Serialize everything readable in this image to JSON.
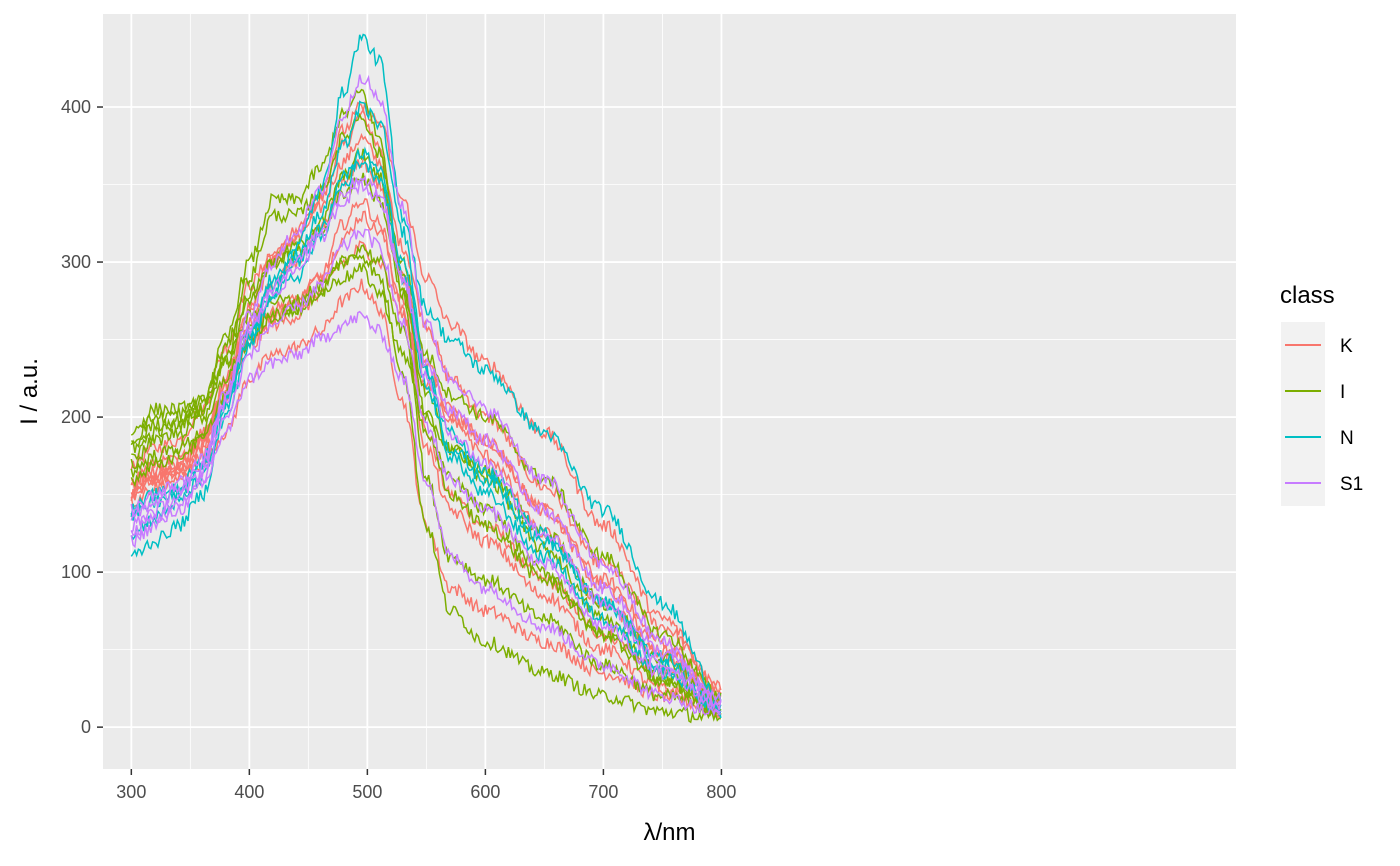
{
  "chart_data": {
    "type": "line",
    "title": "",
    "xlabel": "λ/nm",
    "ylabel": "I / a.u.",
    "xlim": [
      276,
      1236
    ],
    "ylim": [
      -27,
      460
    ],
    "x_ticks": [
      300,
      400,
      500,
      600,
      700,
      800
    ],
    "y_ticks": [
      0,
      100,
      200,
      300,
      400
    ],
    "x_tick_labels": [
      "300",
      "400",
      "500",
      "600",
      "700",
      "800"
    ],
    "y_tick_labels": [
      "0",
      "100",
      "200",
      "300",
      "400"
    ],
    "grid": true,
    "legend": {
      "title": "class",
      "position": "right",
      "entries": [
        {
          "label": "K",
          "color": "#F8766D"
        },
        {
          "label": "I",
          "color": "#7CAE00"
        },
        {
          "label": "N",
          "color": "#00BFC4"
        },
        {
          "label": "S1",
          "color": "#C77CFF"
        }
      ]
    },
    "x": [
      300,
      320,
      340,
      360,
      380,
      400,
      420,
      440,
      460,
      480,
      495,
      510,
      530,
      550,
      570,
      600,
      650,
      700,
      750,
      800
    ],
    "series": [
      {
        "class": "K",
        "values": [
          150,
          160,
          165,
          180,
          225,
          270,
          300,
          315,
          340,
          375,
          395,
          375,
          290,
          190,
          150,
          130,
          95,
          60,
          35,
          20
        ]
      },
      {
        "class": "K",
        "values": [
          170,
          180,
          185,
          205,
          245,
          285,
          305,
          315,
          335,
          365,
          380,
          365,
          310,
          260,
          225,
          200,
          155,
          105,
          65,
          25
        ]
      },
      {
        "class": "K",
        "values": [
          160,
          170,
          172,
          190,
          220,
          250,
          265,
          275,
          290,
          315,
          330,
          320,
          275,
          230,
          205,
          185,
          140,
          95,
          55,
          20
        ]
      },
      {
        "class": "K",
        "values": [
          150,
          160,
          162,
          170,
          190,
          225,
          240,
          245,
          255,
          275,
          285,
          270,
          210,
          130,
          90,
          75,
          55,
          35,
          20,
          10
        ]
      },
      {
        "class": "K",
        "values": [
          155,
          165,
          168,
          185,
          215,
          245,
          260,
          265,
          280,
          300,
          310,
          300,
          265,
          220,
          200,
          185,
          140,
          90,
          50,
          20
        ]
      },
      {
        "class": "K",
        "values": [
          150,
          160,
          165,
          180,
          225,
          270,
          305,
          320,
          345,
          385,
          400,
          390,
          340,
          290,
          260,
          235,
          190,
          130,
          70,
          25
        ]
      },
      {
        "class": "K",
        "values": [
          145,
          155,
          160,
          175,
          210,
          250,
          270,
          275,
          290,
          325,
          340,
          325,
          270,
          180,
          140,
          120,
          85,
          50,
          25,
          10
        ]
      },
      {
        "class": "K",
        "values": [
          155,
          165,
          170,
          185,
          220,
          260,
          285,
          300,
          320,
          350,
          365,
          350,
          295,
          235,
          200,
          175,
          125,
          80,
          45,
          15
        ]
      },
      {
        "class": "I",
        "values": [
          190,
          205,
          205,
          210,
          250,
          300,
          340,
          340,
          360,
          395,
          410,
          380,
          280,
          160,
          110,
          95,
          70,
          40,
          20,
          10
        ]
      },
      {
        "class": "I",
        "values": [
          175,
          190,
          195,
          205,
          240,
          280,
          300,
          310,
          325,
          355,
          370,
          355,
          300,
          240,
          215,
          200,
          160,
          110,
          60,
          20
        ]
      },
      {
        "class": "I",
        "values": [
          165,
          175,
          180,
          190,
          225,
          255,
          265,
          270,
          280,
          300,
          310,
          300,
          255,
          190,
          150,
          130,
          95,
          60,
          30,
          10
        ]
      },
      {
        "class": "I",
        "values": [
          180,
          195,
          198,
          205,
          235,
          265,
          275,
          275,
          285,
          300,
          305,
          290,
          230,
          130,
          75,
          55,
          35,
          20,
          10,
          5
        ]
      },
      {
        "class": "I",
        "values": [
          160,
          170,
          175,
          185,
          215,
          250,
          265,
          270,
          280,
          290,
          295,
          280,
          240,
          200,
          180,
          165,
          125,
          80,
          45,
          15
        ]
      },
      {
        "class": "I",
        "values": [
          170,
          185,
          190,
          200,
          235,
          275,
          300,
          305,
          320,
          345,
          355,
          340,
          280,
          215,
          180,
          160,
          115,
          70,
          35,
          12
        ]
      },
      {
        "class": "I",
        "values": [
          185,
          200,
          202,
          210,
          245,
          290,
          330,
          330,
          345,
          380,
          395,
          370,
          290,
          200,
          160,
          140,
          100,
          60,
          30,
          10
        ]
      },
      {
        "class": "N",
        "values": [
          110,
          120,
          130,
          150,
          200,
          245,
          280,
          310,
          345,
          410,
          445,
          430,
          330,
          270,
          250,
          230,
          190,
          140,
          80,
          20
        ]
      },
      {
        "class": "N",
        "values": [
          135,
          145,
          150,
          170,
          210,
          255,
          285,
          300,
          320,
          350,
          365,
          355,
          290,
          220,
          180,
          160,
          120,
          80,
          45,
          15
        ]
      },
      {
        "class": "N",
        "values": [
          125,
          135,
          145,
          160,
          205,
          250,
          280,
          290,
          315,
          355,
          370,
          360,
          300,
          230,
          190,
          165,
          125,
          80,
          40,
          12
        ]
      },
      {
        "class": "N",
        "values": [
          140,
          150,
          155,
          170,
          210,
          255,
          290,
          305,
          330,
          375,
          400,
          390,
          320,
          230,
          175,
          150,
          110,
          70,
          35,
          10
        ]
      },
      {
        "class": "S1",
        "values": [
          120,
          130,
          140,
          155,
          190,
          225,
          235,
          240,
          250,
          260,
          265,
          255,
          225,
          160,
          110,
          90,
          65,
          40,
          20,
          8
        ]
      },
      {
        "class": "S1",
        "values": [
          130,
          140,
          148,
          165,
          210,
          260,
          285,
          300,
          320,
          345,
          355,
          345,
          290,
          225,
          190,
          170,
          125,
          80,
          40,
          15
        ]
      },
      {
        "class": "S1",
        "values": [
          140,
          150,
          158,
          172,
          215,
          265,
          300,
          320,
          345,
          395,
          420,
          405,
          335,
          260,
          225,
          205,
          160,
          105,
          55,
          15
        ]
      },
      {
        "class": "S1",
        "values": [
          125,
          135,
          142,
          160,
          200,
          240,
          260,
          270,
          285,
          310,
          320,
          310,
          260,
          195,
          160,
          140,
          105,
          65,
          35,
          12
        ]
      },
      {
        "class": "S1",
        "values": [
          135,
          145,
          152,
          168,
          212,
          255,
          280,
          295,
          315,
          340,
          350,
          340,
          290,
          235,
          205,
          185,
          140,
          90,
          48,
          18
        ]
      }
    ]
  }
}
